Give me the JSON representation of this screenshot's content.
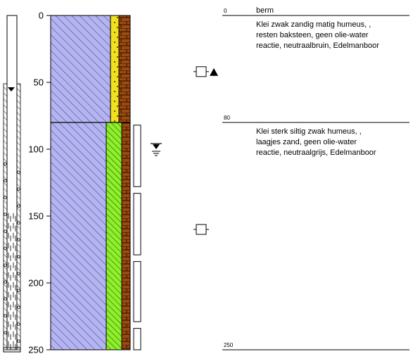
{
  "chart_data": {
    "type": "borehole-log",
    "depth_range": [
      0,
      250
    ],
    "depth_ticks": [
      0,
      50,
      100,
      150,
      200,
      250
    ],
    "groundwater_level": 100,
    "layers": [
      {
        "top": 0,
        "bottom": 80,
        "top_label": "0",
        "heading": "berm",
        "description": [
          "Klei zwak zandig matig humeus, ,",
          "resten baksteen, geen olie-water",
          "reactie, neutraalbruin, Edelmanboor"
        ]
      },
      {
        "top": 80,
        "bottom": 250,
        "top_label": "80",
        "heading": "",
        "description": [
          "Klei sterk siltig zwak humeus, ,",
          "laagjes zand, geen olie-water",
          "reactie, neutraalgrijs, Edelmanboor"
        ]
      }
    ],
    "bottom_label": "250",
    "sample_depths": [
      {
        "top": 82,
        "bottom": 128
      },
      {
        "top": 133,
        "bottom": 179
      },
      {
        "top": 184,
        "bottom": 229
      },
      {
        "top": 234,
        "bottom": 250
      }
    ],
    "sample_symbols": [
      {
        "depth": 42,
        "filled_marker": true
      },
      {
        "depth": 160,
        "filled_marker": false
      }
    ],
    "well": {
      "casing_to": 53,
      "screen_from": 53,
      "screen_to": 250,
      "water_level": 53
    },
    "colors": {
      "clay": "#b4b4f0",
      "sand_yellow": "#f0e01e",
      "silt_green": "#8ef02a",
      "brick_brown": "#9b4a10"
    }
  }
}
